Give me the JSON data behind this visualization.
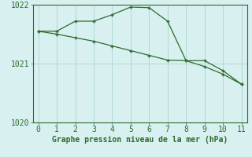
{
  "line1_x": [
    0,
    1,
    2,
    3,
    4,
    5,
    6,
    7,
    8,
    9,
    10,
    11
  ],
  "line1_y": [
    1021.55,
    1021.55,
    1021.72,
    1021.72,
    1021.83,
    1021.96,
    1021.95,
    1021.72,
    1021.05,
    1021.05,
    1020.88,
    1020.65
  ],
  "line2_x": [
    0,
    1,
    2,
    3,
    4,
    5,
    6,
    7,
    8,
    9,
    10,
    11
  ],
  "line2_y": [
    1021.55,
    1021.5,
    1021.44,
    1021.38,
    1021.3,
    1021.22,
    1021.14,
    1021.06,
    1021.05,
    1020.95,
    1020.82,
    1020.65
  ],
  "line_color": "#2d6a2d",
  "bg_color": "#d8f0f0",
  "grid_color": "#b0d8d8",
  "xlabel": "Graphe pression niveau de la mer (hPa)",
  "xlim": [
    -0.3,
    11.3
  ],
  "ylim": [
    1020.0,
    1022.0
  ],
  "yticks": [
    1020,
    1021,
    1022
  ],
  "xticks": [
    0,
    1,
    2,
    3,
    4,
    5,
    6,
    7,
    8,
    9,
    10,
    11
  ],
  "xlabel_fontsize": 7,
  "tick_fontsize": 7,
  "marker_size": 3
}
